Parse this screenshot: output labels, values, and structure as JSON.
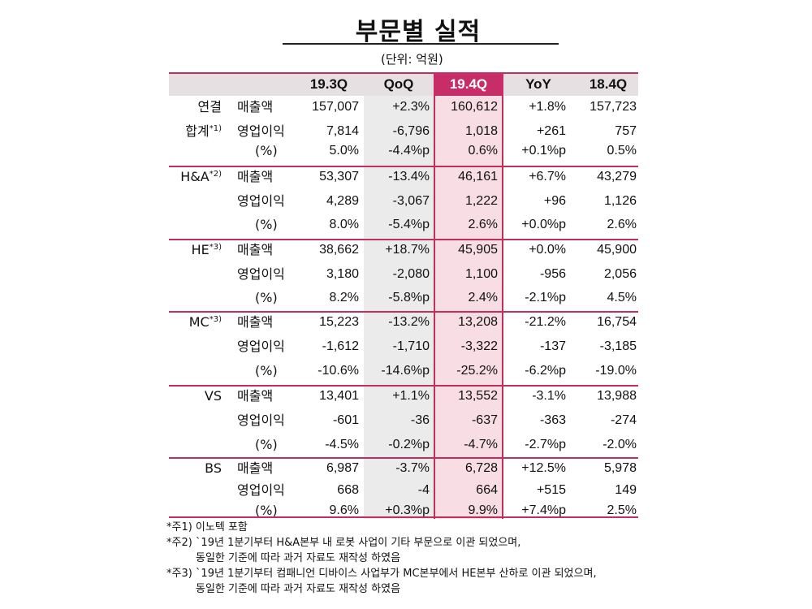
{
  "title": "부문별 실적",
  "unit": "(단위: 억원)",
  "columns": [
    "19.3Q",
    "QoQ",
    "19.4Q",
    "YoY",
    "18.4Q"
  ],
  "rows": [
    {
      "seg": "연결",
      "seg_sup": "",
      "metric": "매출액",
      "values": [
        "157,007",
        "+2.3%",
        "160,612",
        "+1.8%",
        "157,723"
      ]
    },
    {
      "seg": "합계",
      "seg_sup": "*1)",
      "metric": "영업이익",
      "values": [
        "7,814",
        "-6,796",
        "1,018",
        "+261",
        "757"
      ]
    },
    {
      "seg": "",
      "seg_sup": "",
      "metric": "(%)",
      "values": [
        "5.0%",
        "-4.4%p",
        "0.6%",
        "+0.1%p",
        "0.5%"
      ]
    },
    {
      "seg": "H&A",
      "seg_sup": "*2)",
      "metric": "매출액",
      "values": [
        "53,307",
        "-13.4%",
        "46,161",
        "+6.7%",
        "43,279"
      ]
    },
    {
      "seg": "",
      "seg_sup": "",
      "metric": "영업이익",
      "values": [
        "4,289",
        "-3,067",
        "1,222",
        "+96",
        "1,126"
      ]
    },
    {
      "seg": "",
      "seg_sup": "",
      "metric": "(%)",
      "values": [
        "8.0%",
        "-5.4%p",
        "2.6%",
        "+0.0%p",
        "2.6%"
      ]
    },
    {
      "seg": "HE",
      "seg_sup": "*3)",
      "metric": "매출액",
      "values": [
        "38,662",
        "+18.7%",
        "45,905",
        "+0.0%",
        "45,900"
      ]
    },
    {
      "seg": "",
      "seg_sup": "",
      "metric": "영업이익",
      "values": [
        "3,180",
        "-2,080",
        "1,100",
        "-956",
        "2,056"
      ]
    },
    {
      "seg": "",
      "seg_sup": "",
      "metric": "(%)",
      "values": [
        "8.2%",
        "-5.8%p",
        "2.4%",
        "-2.1%p",
        "4.5%"
      ]
    },
    {
      "seg": "MC",
      "seg_sup": "*3)",
      "metric": "매출액",
      "values": [
        "15,223",
        "-13.2%",
        "13,208",
        "-21.2%",
        "16,754"
      ]
    },
    {
      "seg": "",
      "seg_sup": "",
      "metric": "영업이익",
      "values": [
        "-1,612",
        "-1,710",
        "-3,322",
        "-137",
        "-3,185"
      ]
    },
    {
      "seg": "",
      "seg_sup": "",
      "metric": "(%)",
      "values": [
        "-10.6%",
        "-14.6%p",
        "-25.2%",
        "-6.2%p",
        "-19.0%"
      ]
    },
    {
      "seg": "VS",
      "seg_sup": "",
      "metric": "매출액",
      "values": [
        "13,401",
        "+1.1%",
        "13,552",
        "-3.1%",
        "13,988"
      ]
    },
    {
      "seg": "",
      "seg_sup": "",
      "metric": "영업이익",
      "values": [
        "-601",
        "-36",
        "-637",
        "-363",
        "-274"
      ]
    },
    {
      "seg": "",
      "seg_sup": "",
      "metric": "(%)",
      "values": [
        "-4.5%",
        "-0.2%p",
        "-4.7%",
        "-2.7%p",
        "-2.0%"
      ]
    },
    {
      "seg": "BS",
      "seg_sup": "",
      "metric": "매출액",
      "values": [
        "6,987",
        "-3.7%",
        "6,728",
        "+12.5%",
        "5,978"
      ]
    },
    {
      "seg": "",
      "seg_sup": "",
      "metric": "영업이익",
      "values": [
        "668",
        "-4",
        "664",
        "+515",
        "149"
      ]
    },
    {
      "seg": "",
      "seg_sup": "",
      "metric": "(%)",
      "values": [
        "9.6%",
        "+0.3%p",
        "9.9%",
        "+7.4%p",
        "2.5%"
      ]
    }
  ],
  "notes": [
    "*주1) 이노텍 포함",
    "*주2) `19년 1분기부터 H&A본부 내 로봇 사업이 기타 부문으로 이관 되었으며,",
    "동일한 기준에 따라 과거 자료도 재작성 하였음",
    "*주3) `19년 1분기부터 컴패니언 디바이스 사업부가 MC본부에서 HE본부 산하로 이관 되었으며,",
    "동일한 기준에 따라 과거 자료도 재작성 하였음"
  ],
  "colors": {
    "accent": "#c0305a",
    "highlight_header": "#c72d67",
    "highlight_col": "#f8dde4",
    "header_band": "#e6e0e3"
  }
}
